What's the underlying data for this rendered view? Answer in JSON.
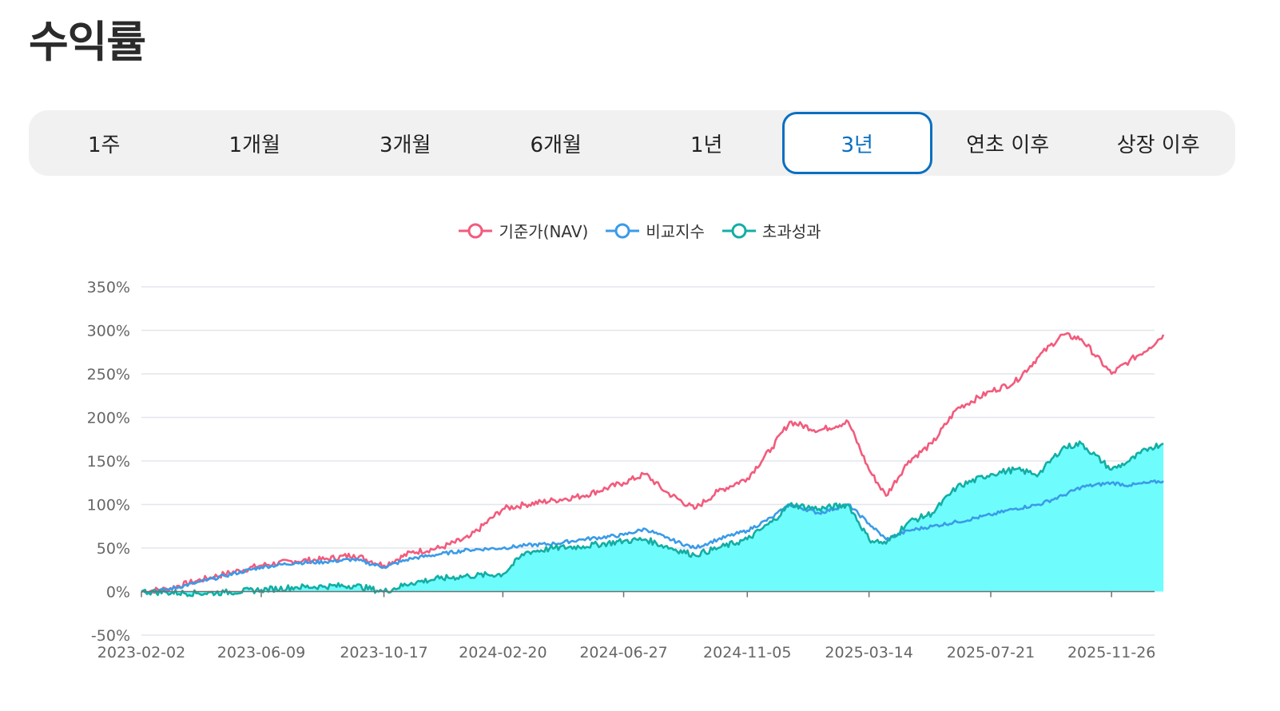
{
  "header": {
    "title": "수익률"
  },
  "tabs": [
    {
      "label": "1주",
      "active": false
    },
    {
      "label": "1개월",
      "active": false
    },
    {
      "label": "3개월",
      "active": false
    },
    {
      "label": "6개월",
      "active": false
    },
    {
      "label": "1년",
      "active": false
    },
    {
      "label": "3년",
      "active": true
    },
    {
      "label": "연초 이후",
      "active": false
    },
    {
      "label": "상장 이후",
      "active": false
    }
  ],
  "colors": {
    "accent": "#0a6fc0",
    "nav": "#f25b7c",
    "benchmark": "#3a9be8",
    "excess": "#13aea4",
    "excess_fill": "#6ffcfd"
  },
  "chart_data": {
    "type": "line",
    "title": "",
    "xlabel": "",
    "ylabel": "",
    "ylim": [
      -50,
      350
    ],
    "yticks": [
      "350%",
      "300%",
      "250%",
      "200%",
      "150%",
      "100%",
      "50%",
      "0%",
      "-50%"
    ],
    "ytick_values": [
      350,
      300,
      250,
      200,
      150,
      100,
      50,
      0,
      -50
    ],
    "xticks": [
      "2023-02-02",
      "2023-06-09",
      "2023-10-17",
      "2024-02-20",
      "2024-06-27",
      "2024-11-05",
      "2025-03-14",
      "2025-07-21",
      "2025-11-26"
    ],
    "grid": true,
    "legend_position": "top-center",
    "x": [
      "2023-02-02",
      "2023-03-01",
      "2023-04-01",
      "2023-05-01",
      "2023-06-09",
      "2023-07-15",
      "2023-08-15",
      "2023-09-15",
      "2023-10-17",
      "2023-11-15",
      "2023-12-15",
      "2024-01-15",
      "2024-02-20",
      "2024-03-15",
      "2024-04-15",
      "2024-05-15",
      "2024-06-27",
      "2024-07-20",
      "2024-08-10",
      "2024-09-10",
      "2024-10-05",
      "2024-11-05",
      "2024-12-01",
      "2024-12-20",
      "2025-01-20",
      "2025-02-20",
      "2025-03-14",
      "2025-04-01",
      "2025-04-25",
      "2025-05-20",
      "2025-06-15",
      "2025-07-21",
      "2025-08-15",
      "2025-09-10",
      "2025-10-05",
      "2025-10-25",
      "2025-11-26",
      "2025-12-15",
      "2026-01-05",
      "2026-01-20"
    ],
    "series": [
      {
        "name": "기준가(NAV)",
        "color": "#f25b7c",
        "values": [
          0,
          3,
          12,
          20,
          30,
          35,
          37,
          42,
          30,
          45,
          50,
          62,
          95,
          100,
          105,
          110,
          125,
          135,
          115,
          95,
          115,
          130,
          165,
          195,
          185,
          195,
          140,
          110,
          150,
          170,
          210,
          230,
          240,
          270,
          295,
          290,
          250,
          265,
          280,
          295
        ]
      },
      {
        "name": "비교지수",
        "color": "#3a9be8",
        "values": [
          0,
          2,
          10,
          18,
          28,
          33,
          34,
          37,
          28,
          38,
          43,
          48,
          50,
          53,
          55,
          60,
          65,
          72,
          62,
          50,
          60,
          70,
          85,
          100,
          90,
          100,
          78,
          60,
          70,
          75,
          80,
          88,
          95,
          100,
          110,
          120,
          125,
          122,
          125,
          127
        ]
      },
      {
        "name": "초과성과",
        "color": "#13aea4",
        "fill": "#6ffcfd",
        "values": [
          0,
          -1,
          -2,
          -1,
          2,
          5,
          6,
          7,
          0,
          10,
          15,
          18,
          20,
          45,
          50,
          52,
          58,
          60,
          52,
          42,
          50,
          60,
          80,
          100,
          95,
          100,
          60,
          55,
          80,
          90,
          120,
          135,
          140,
          135,
          165,
          170,
          140,
          150,
          165,
          170
        ]
      }
    ]
  }
}
